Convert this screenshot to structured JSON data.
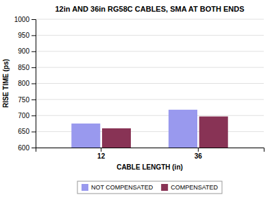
{
  "chart_data": {
    "type": "bar",
    "title": "12in AND 36in RG58C CABLES, SMA AT BOTH ENDS",
    "xlabel": "CABLE LENGTH (in)",
    "ylabel": "RISE TIME (ps)",
    "categories": [
      "12",
      "36"
    ],
    "series": [
      {
        "name": "NOT COMPENSATED",
        "color": "#9999EE",
        "values": [
          675,
          718
        ]
      },
      {
        "name": "COMPENSATED",
        "color": "#883355",
        "values": [
          660,
          697
        ]
      }
    ],
    "ylim": [
      600,
      1000
    ],
    "yticks": [
      600,
      650,
      700,
      750,
      800,
      850,
      900,
      950,
      1000
    ],
    "grid": true,
    "legend": "bottom"
  }
}
